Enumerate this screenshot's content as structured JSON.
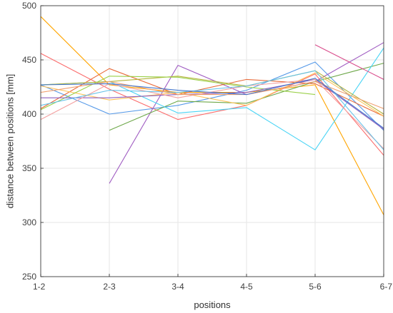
{
  "chart_data": {
    "type": "line",
    "categories": [
      "1-2",
      "2-3",
      "3-4",
      "4-5",
      "5-6",
      "6-7"
    ],
    "xlabel": "positions",
    "ylabel": "distance between positions [mm]",
    "ylim": [
      250,
      500
    ],
    "yticks": [
      250,
      300,
      350,
      400,
      450,
      500
    ],
    "grid": true,
    "series": [
      {
        "color": "#ffa500",
        "values": [
          490,
          427,
          420,
          420,
          427,
          307
        ]
      },
      {
        "color": "#fb6c6c",
        "values": [
          456,
          423,
          395,
          408,
          437,
          362
        ]
      },
      {
        "color": "#5599e8",
        "values": [
          427,
          400,
          408,
          422,
          448,
          385
        ]
      },
      {
        "color": "#a05dc2",
        "values": [
          null,
          336,
          445,
          418,
          430,
          466
        ]
      },
      {
        "color": "#6ea84a",
        "values": [
          null,
          385,
          412,
          410,
          430,
          447
        ]
      },
      {
        "color": "#49d4f5",
        "values": [
          427,
          430,
          401,
          406,
          367,
          461
        ]
      },
      {
        "color": "#e86a3a",
        "values": [
          405,
          442,
          418,
          432,
          428,
          398
        ]
      },
      {
        "color": "#ffc35a",
        "values": [
          426,
          413,
          420,
          408,
          438,
          398
        ]
      },
      {
        "color": "#b4b43c",
        "values": [
          427,
          430,
          435,
          426,
          440,
          400
        ]
      },
      {
        "color": "#9ad048",
        "values": [
          404,
          435,
          434,
          425,
          418,
          null
        ]
      },
      {
        "color": "#d94d8c",
        "values": [
          null,
          null,
          null,
          null,
          464,
          432
        ]
      },
      {
        "color": "#8c5fbf",
        "values": [
          415,
          415,
          418,
          420,
          432,
          386
        ]
      },
      {
        "color": "#f3a0a0",
        "values": [
          395,
          428,
          415,
          426,
          432,
          368
        ]
      },
      {
        "color": "#66c2e8",
        "values": [
          408,
          422,
          420,
          426,
          440,
          367
        ]
      },
      {
        "color": "#f0a070",
        "values": [
          420,
          430,
          418,
          418,
          430,
          405
        ]
      },
      {
        "color": "#4477cc",
        "values": [
          427,
          428,
          422,
          418,
          433,
          387
        ]
      }
    ]
  }
}
